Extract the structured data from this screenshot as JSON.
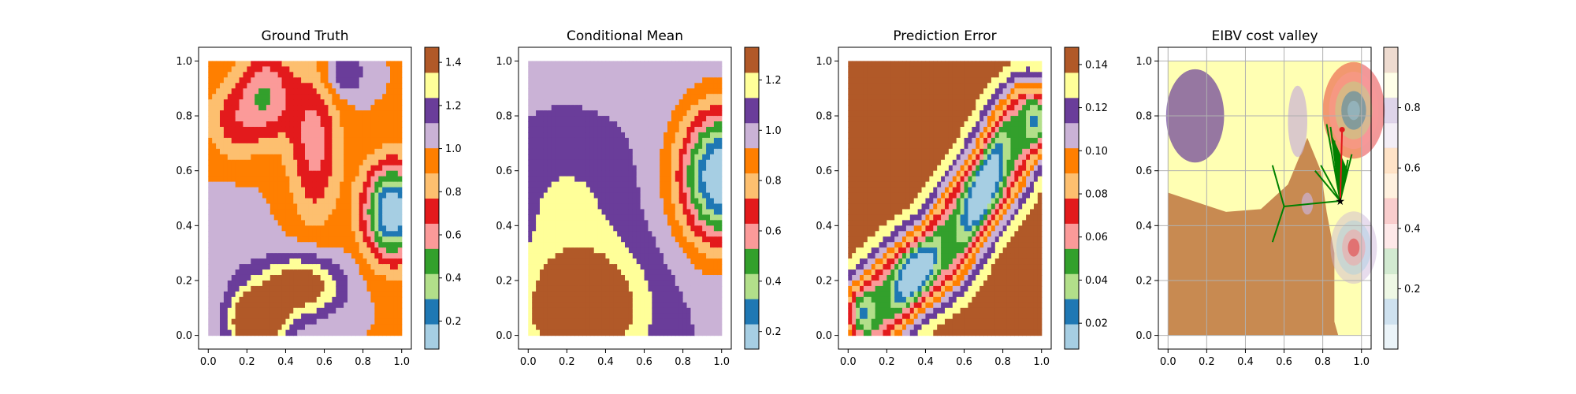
{
  "chart_data": [
    {
      "type": "heatmap",
      "title": "Ground Truth",
      "xlabel": "",
      "ylabel": "",
      "xlim": [
        -0.05,
        1.05
      ],
      "ylim": [
        -0.05,
        1.05
      ],
      "x_ticks": [
        "0.0",
        "0.2",
        "0.4",
        "0.6",
        "0.8",
        "1.0"
      ],
      "y_ticks": [
        "0.0",
        "0.2",
        "0.4",
        "0.6",
        "0.8",
        "1.0"
      ],
      "grid": false,
      "colormap": "Paired",
      "colorbar": {
        "range": [
          0.07,
          1.47
        ],
        "ticks": [
          "0.2",
          "0.4",
          "0.6",
          "0.8",
          "1.0",
          "1.2",
          "1.4"
        ]
      },
      "field": {
        "base": 1.0,
        "bumps": [
          {
            "x": 0.95,
            "y": 0.45,
            "amp": -0.95,
            "sx": 0.1,
            "sy": 0.12
          },
          {
            "x": 0.25,
            "y": 0.05,
            "amp": 0.7,
            "sx": 0.1,
            "sy": 0.08
          },
          {
            "x": 0.48,
            "y": 0.18,
            "amp": 0.5,
            "sx": 0.15,
            "sy": 0.08
          },
          {
            "x": 0.3,
            "y": 0.88,
            "amp": -0.45,
            "sx": 0.1,
            "sy": 0.12
          },
          {
            "x": 0.55,
            "y": 0.7,
            "amp": -0.4,
            "sx": 0.09,
            "sy": 0.2
          },
          {
            "x": 0.12,
            "y": 0.78,
            "amp": -0.25,
            "sx": 0.1,
            "sy": 0.1
          },
          {
            "x": 0.7,
            "y": 0.95,
            "amp": 0.25,
            "sx": 0.08,
            "sy": 0.06
          },
          {
            "x": 0.1,
            "y": 0.35,
            "amp": 0.1,
            "sx": 0.12,
            "sy": 0.12
          }
        ]
      }
    },
    {
      "type": "heatmap",
      "title": "Conditional Mean",
      "xlabel": "",
      "ylabel": "",
      "xlim": [
        -0.05,
        1.05
      ],
      "ylim": [
        -0.05,
        1.05
      ],
      "x_ticks": [
        "0.0",
        "0.2",
        "0.4",
        "0.6",
        "0.8",
        "1.0"
      ],
      "y_ticks": [
        "0.0",
        "0.2",
        "0.4",
        "0.6",
        "0.8",
        "1.0"
      ],
      "grid": false,
      "colormap": "Paired",
      "colorbar": {
        "range": [
          0.13,
          1.33
        ],
        "ticks": [
          "0.2",
          "0.4",
          "0.6",
          "0.8",
          "1.0",
          "1.2"
        ]
      },
      "field": {
        "base": 1.02,
        "bumps": [
          {
            "x": 1.0,
            "y": 0.58,
            "amp": -0.95,
            "sx": 0.15,
            "sy": 0.17
          },
          {
            "x": 0.28,
            "y": 0.1,
            "amp": 0.42,
            "sx": 0.22,
            "sy": 0.16
          },
          {
            "x": 0.2,
            "y": 0.5,
            "amp": 0.12,
            "sx": 0.2,
            "sy": 0.15
          }
        ]
      }
    },
    {
      "type": "heatmap",
      "title": "Prediction Error",
      "xlabel": "",
      "ylabel": "",
      "xlim": [
        -0.05,
        1.05
      ],
      "ylim": [
        -0.05,
        1.05
      ],
      "x_ticks": [
        "0.0",
        "0.2",
        "0.4",
        "0.6",
        "0.8",
        "1.0"
      ],
      "y_ticks": [
        "0.0",
        "0.2",
        "0.4",
        "0.6",
        "0.8",
        "1.0"
      ],
      "grid": false,
      "colormap": "Paired",
      "colorbar": {
        "range": [
          0.008,
          0.148
        ],
        "ticks": [
          "0.02",
          "0.04",
          "0.06",
          "0.08",
          "0.10",
          "0.12",
          "0.14"
        ]
      },
      "field": {
        "base": 0.145,
        "line_path": [
          [
            0.12,
            0.08
          ],
          [
            0.3,
            0.2
          ],
          [
            0.48,
            0.3
          ],
          [
            0.62,
            0.45
          ],
          [
            0.75,
            0.58
          ],
          [
            0.86,
            0.72
          ],
          [
            0.93,
            0.78
          ]
        ],
        "line_depth": 0.125,
        "line_width": 0.22
      }
    },
    {
      "type": "heatmap",
      "title": "EIBV cost valley",
      "xlabel": "",
      "ylabel": "",
      "xlim": [
        -0.05,
        1.05
      ],
      "ylim": [
        -0.05,
        1.05
      ],
      "x_ticks": [
        "0.0",
        "0.2",
        "0.4",
        "0.6",
        "0.8",
        "1.0"
      ],
      "y_ticks": [
        "0.0",
        "0.2",
        "0.4",
        "0.6",
        "0.8",
        "1.0"
      ],
      "grid": true,
      "colormap": "Paired",
      "colorbar": {
        "range": [
          0.0,
          1.0
        ],
        "ticks": [
          "0.2",
          "0.4",
          "0.6",
          "0.8"
        ]
      },
      "field": {
        "regions": [
          {
            "kind": "ellipse",
            "x": 0.14,
            "y": 0.8,
            "rx": 0.15,
            "ry": 0.17,
            "color": "#6a3d9a"
          },
          {
            "kind": "ellipse",
            "x": 0.67,
            "y": 0.78,
            "rx": 0.05,
            "ry": 0.13,
            "color": "#cab2d6"
          },
          {
            "kind": "ellipse",
            "x": 0.72,
            "y": 0.48,
            "rx": 0.03,
            "ry": 0.04,
            "color": "#cab2d6"
          }
        ],
        "rings": [
          {
            "x": 0.96,
            "y": 0.82,
            "r": 0.16,
            "colors": [
              "#e31a1c",
              "#fb9a99",
              "#b2df8a",
              "#1f78b4",
              "#a6cee3"
            ]
          },
          {
            "x": 0.96,
            "y": 0.32,
            "r": 0.12,
            "colors": [
              "#cab2d6",
              "#a6cee3",
              "#fb9a99",
              "#e31a1c"
            ]
          }
        ]
      },
      "paths": {
        "current_location": [
          0.89,
          0.49
        ],
        "next_waypoint": [
          0.9,
          0.75
        ],
        "candidates": [
          [
            0.54,
            0.34
          ],
          [
            0.6,
            0.47
          ],
          [
            0.54,
            0.62
          ],
          [
            0.76,
            0.6
          ],
          [
            0.79,
            0.62
          ],
          [
            0.82,
            0.77
          ],
          [
            0.84,
            0.76
          ],
          [
            0.86,
            0.71
          ],
          [
            0.93,
            0.64
          ],
          [
            0.95,
            0.66
          ]
        ],
        "branch_point": [
          0.6,
          0.47
        ]
      }
    }
  ]
}
